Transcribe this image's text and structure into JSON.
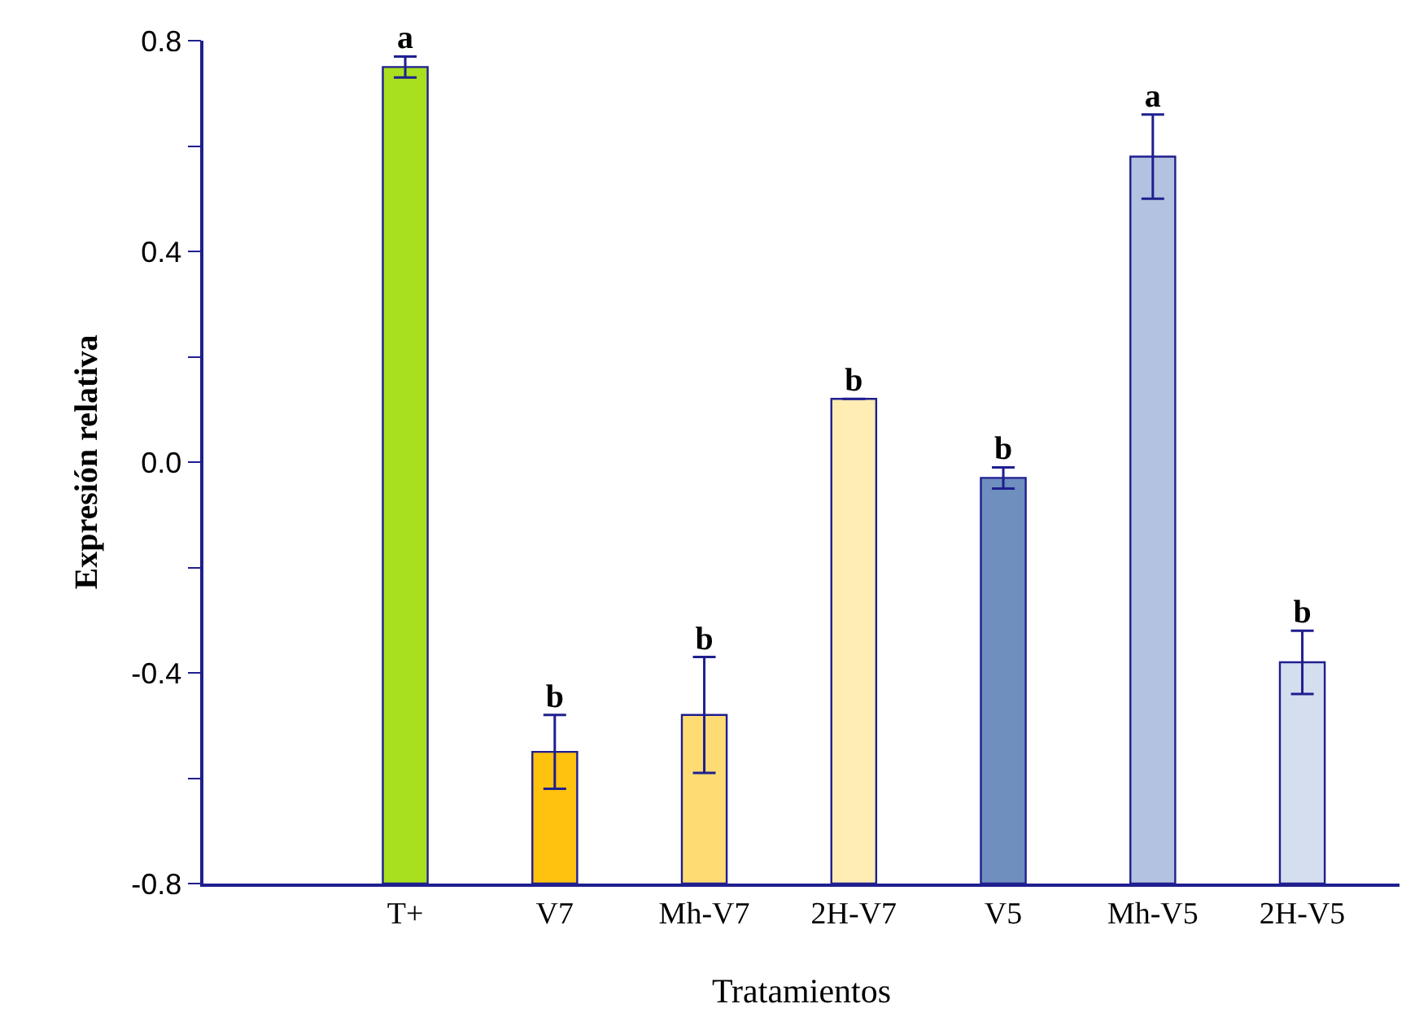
{
  "chart_data": {
    "type": "bar",
    "xlabel": "Tratamientos",
    "ylabel": "Expresión relativa",
    "categories": [
      "T+",
      "V7",
      "Mh-V7",
      "2H-V7",
      "V5",
      "Mh-V5",
      "2H-V5"
    ],
    "base": [
      -0.8,
      -0.8,
      -0.8,
      -0.8,
      -0.8,
      -0.8,
      -0.8
    ],
    "values": [
      1.55,
      0.25,
      0.32,
      0.92,
      0.77,
      1.38,
      0.42
    ],
    "errors": [
      0.02,
      0.07,
      0.11,
      0,
      0.02,
      0.08,
      0.06
    ],
    "colors": [
      "#a8e020",
      "#ffc20e",
      "#ffdc73",
      "#ffedb3",
      "#6f8fbf",
      "#b3c2e0",
      "#d5deee"
    ],
    "value_labels": [
      "a",
      "b",
      "b",
      "b",
      "b",
      "a",
      "b"
    ],
    "ylim": [
      -0.8,
      0.8
    ],
    "yticks": [
      -0.8,
      {
        "value": -0.6,
        "label": null
      },
      -0.4,
      {
        "value": -0.2,
        "label": null
      },
      {
        "value": 0,
        "label": "0.0"
      },
      {
        "value": 0.2,
        "label": null
      },
      0.4,
      {
        "value": 0.6,
        "label": null
      },
      0.8
    ]
  }
}
